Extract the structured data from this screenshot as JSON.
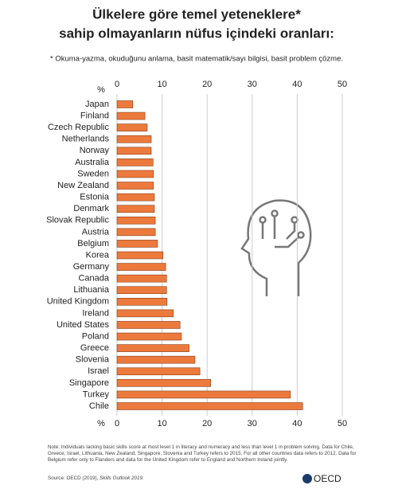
{
  "chart_data": {
    "type": "barh",
    "title": [
      "Ülkelere göre temel yeteneklere*",
      "sahip olmayanların nüfus içindeki oranları:"
    ],
    "subtitle": "* Okuma-yazma, okuduğunu anlama, basit matematik/sayı bilgisi, basit problem çözme.",
    "axis_label": "%",
    "categories": [
      "Japan",
      "Finland",
      "Czech Republic",
      "Netherlands",
      "Norway",
      "Australia",
      "Sweden",
      "New Zealand",
      "Estonia",
      "Denmark",
      "Slovak Republic",
      "Austria",
      "Belgium",
      "Korea",
      "Germany",
      "Canada",
      "Lithuania",
      "United Kingdom",
      "Ireland",
      "United States",
      "Poland",
      "Greece",
      "Slovenia",
      "Israel",
      "Singapore",
      "Turkey",
      "Chile"
    ],
    "values": [
      3.5,
      6.2,
      6.7,
      7.6,
      7.6,
      8.0,
      8.1,
      8.1,
      8.3,
      8.3,
      8.5,
      8.5,
      9.0,
      10.2,
      10.8,
      11.0,
      11.0,
      11.1,
      12.5,
      14.0,
      14.3,
      16.0,
      17.3,
      18.4,
      20.8,
      38.5,
      41.2
    ],
    "color": "#ec7a3c",
    "xlim": [
      0,
      50
    ],
    "xticks": [
      0,
      10,
      20,
      30,
      40,
      50
    ],
    "grid": true,
    "note": "Note: Individuals lacking basic skills score at most level 1 in literacy and numeracy and less than level 1 in problem solving. Data for Chile, Greece, Israel, Lithuania, New Zealand, Singapore, Slovenia and Turkey refers to 2015. For all other countries data refers to 2012. Data for Belgium refer only to Flanders and data for the United Kingdom refer to England and Northern Ireland jointly.",
    "source": "Source: OECD (2019),",
    "source_title": "Skills Outlook 2019.",
    "logo": "OECD"
  }
}
